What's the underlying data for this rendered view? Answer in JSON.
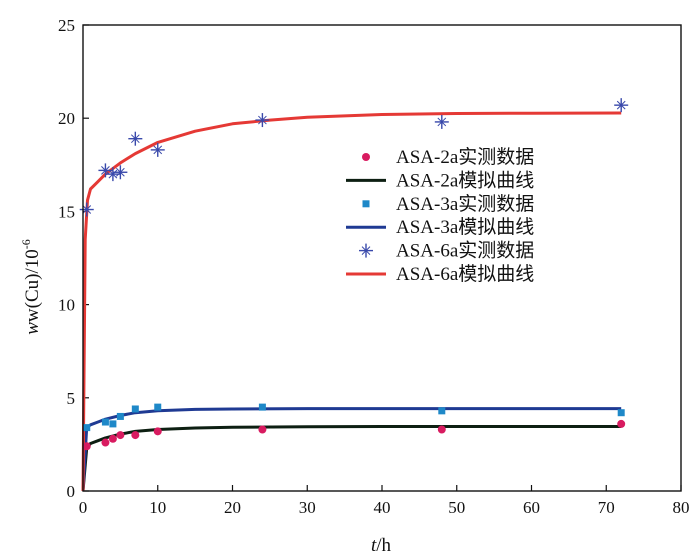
{
  "chart_data": {
    "type": "scatter",
    "xlim": [
      0,
      80
    ],
    "ylim": [
      0,
      25
    ],
    "xticks": [
      0,
      10,
      20,
      30,
      40,
      50,
      60,
      70,
      80
    ],
    "yticks": [
      0,
      5,
      10,
      15,
      20,
      25
    ],
    "xlabel": {
      "var": "t",
      "unit": "/h"
    },
    "ylabel": {
      "pre": "w(Cu)/10",
      "exp": "-6"
    },
    "grid": false,
    "legend_position": "right",
    "series": [
      {
        "name": "ASA-2a实测数据",
        "kind": "points",
        "marker": "circle",
        "color": "#d81b60",
        "x": [
          0.5,
          3,
          4,
          5,
          7,
          10,
          24,
          48,
          72
        ],
        "y": [
          2.4,
          2.6,
          2.8,
          3.0,
          3.0,
          3.2,
          3.3,
          3.3,
          3.6
        ]
      },
      {
        "name": "ASA-2a模拟曲线",
        "kind": "curve",
        "color": "#0d1f12",
        "x": [
          0,
          0.5,
          1,
          2,
          3,
          5,
          7,
          10,
          15,
          20,
          30,
          40,
          50,
          60,
          72
        ],
        "y": [
          0,
          2.3,
          2.55,
          2.7,
          2.85,
          3.05,
          3.2,
          3.3,
          3.38,
          3.42,
          3.45,
          3.46,
          3.46,
          3.46,
          3.46
        ]
      },
      {
        "name": "ASA-3a实测数据",
        "kind": "points",
        "marker": "square",
        "color": "#1e88c8",
        "x": [
          0.5,
          3,
          4,
          5,
          7,
          10,
          24,
          48,
          72
        ],
        "y": [
          3.4,
          3.7,
          3.6,
          4.0,
          4.4,
          4.5,
          4.5,
          4.3,
          4.2
        ]
      },
      {
        "name": "ASA-3a模拟曲线",
        "kind": "curve",
        "color": "#1f3a93",
        "x": [
          0,
          0.5,
          1,
          2,
          3,
          5,
          7,
          10,
          15,
          20,
          30,
          40,
          50,
          60,
          72
        ],
        "y": [
          0,
          3.4,
          3.55,
          3.7,
          3.85,
          4.05,
          4.2,
          4.3,
          4.38,
          4.4,
          4.42,
          4.42,
          4.42,
          4.42,
          4.42
        ]
      },
      {
        "name": "ASA-6a实测数据",
        "kind": "points",
        "marker": "star",
        "color": "#3949ab",
        "x": [
          0.5,
          3,
          4,
          5,
          7,
          10,
          24,
          48,
          72
        ],
        "y": [
          15.1,
          17.2,
          17.0,
          17.1,
          18.9,
          18.3,
          19.9,
          19.8,
          20.7
        ]
      },
      {
        "name": "ASA-6a模拟曲线",
        "kind": "curve",
        "color": "#e53935",
        "x": [
          0,
          0.3,
          0.6,
          1,
          2,
          3,
          5,
          7,
          10,
          15,
          20,
          25,
          30,
          40,
          50,
          60,
          72
        ],
        "y": [
          0,
          13.5,
          15.6,
          16.2,
          16.6,
          17.0,
          17.6,
          18.1,
          18.7,
          19.3,
          19.7,
          19.9,
          20.05,
          20.2,
          20.25,
          20.27,
          20.28
        ]
      }
    ]
  }
}
